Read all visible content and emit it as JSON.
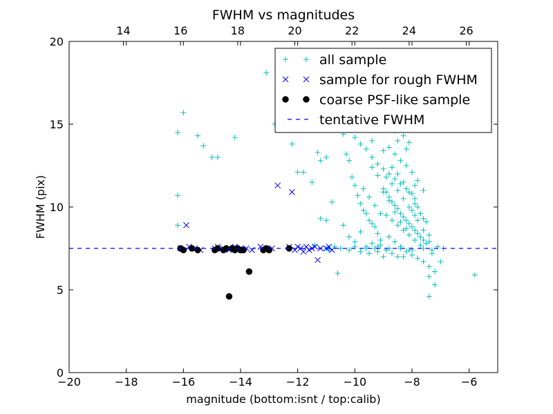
{
  "chart_data": {
    "type": "scatter",
    "title": "FWHM vs magnitudes",
    "xlabel": "magnitude (bottom:isnt / top:calib)",
    "ylabel": "FWHM (pix)",
    "xlim": [
      -20,
      -5
    ],
    "ylim": [
      0,
      20
    ],
    "x_ticks": [
      "−20",
      "−18",
      "−16",
      "−14",
      "−12",
      "−10",
      "−8",
      "−6"
    ],
    "y_ticks": [
      "0",
      "5",
      "10",
      "15",
      "20"
    ],
    "top_x_ticks": [
      "14",
      "16",
      "18",
      "20",
      "22",
      "24",
      "26"
    ],
    "top_axis_offset": 32.1,
    "grid": false,
    "legend_position": "top-right",
    "series": [
      {
        "name": "all sample",
        "marker": "plus",
        "color": "#00bfbf",
        "points": [
          [
            -16.2,
            14.5
          ],
          [
            -16.0,
            15.7
          ],
          [
            -16.2,
            10.7
          ],
          [
            -16.2,
            8.9
          ],
          [
            -15.5,
            14.3
          ],
          [
            -15.3,
            13.7
          ],
          [
            -15.0,
            13.0
          ],
          [
            -14.8,
            13.0
          ],
          [
            -14.2,
            14.2
          ],
          [
            -13.1,
            18.1
          ],
          [
            -12.8,
            15.0
          ],
          [
            -12.2,
            13.8
          ],
          [
            -12.0,
            12.1
          ],
          [
            -11.8,
            12.1
          ],
          [
            -11.5,
            11.5
          ],
          [
            -11.3,
            13.3
          ],
          [
            -11.2,
            12.8
          ],
          [
            -11.0,
            13.0
          ],
          [
            -10.8,
            10.3
          ],
          [
            -10.6,
            6.0
          ],
          [
            -11.2,
            9.3
          ],
          [
            -11.0,
            9.2
          ],
          [
            -10.4,
            8.9
          ],
          [
            -10.2,
            8.2
          ],
          [
            -10.0,
            7.9
          ],
          [
            -9.8,
            8.5
          ],
          [
            -9.6,
            7.6
          ],
          [
            -9.4,
            7.8
          ],
          [
            -9.2,
            7.3
          ],
          [
            -9.0,
            7.0
          ],
          [
            -10.4,
            14.4
          ],
          [
            -10.3,
            13.2
          ],
          [
            -10.2,
            12.8
          ],
          [
            -10.1,
            11.8
          ],
          [
            -10.0,
            11.3
          ],
          [
            -9.9,
            10.7
          ],
          [
            -9.8,
            10.2
          ],
          [
            -9.7,
            9.8
          ],
          [
            -9.6,
            9.6
          ],
          [
            -9.5,
            9.2
          ],
          [
            -9.4,
            9.0
          ],
          [
            -9.3,
            8.8
          ],
          [
            -9.2,
            8.4
          ],
          [
            -9.1,
            8.0
          ],
          [
            -10.0,
            14.2
          ],
          [
            -9.8,
            13.8
          ],
          [
            -9.6,
            13.5
          ],
          [
            -9.4,
            13.0
          ],
          [
            -9.2,
            12.6
          ],
          [
            -9.0,
            12.3
          ],
          [
            -8.8,
            12.0
          ],
          [
            -8.6,
            11.7
          ],
          [
            -8.4,
            11.4
          ],
          [
            -8.2,
            11.1
          ],
          [
            -8.0,
            10.8
          ],
          [
            -7.9,
            10.5
          ],
          [
            -9.0,
            11.1
          ],
          [
            -8.9,
            10.9
          ],
          [
            -8.8,
            10.6
          ],
          [
            -8.7,
            10.3
          ],
          [
            -8.6,
            10.1
          ],
          [
            -8.5,
            9.9
          ],
          [
            -8.4,
            9.6
          ],
          [
            -8.3,
            9.4
          ],
          [
            -8.2,
            9.2
          ],
          [
            -8.1,
            9.0
          ],
          [
            -8.0,
            8.8
          ],
          [
            -7.9,
            8.6
          ],
          [
            -7.8,
            8.4
          ],
          [
            -7.7,
            8.2
          ],
          [
            -7.6,
            8.0
          ],
          [
            -7.5,
            7.8
          ],
          [
            -8.8,
            13.6
          ],
          [
            -8.6,
            13.2
          ],
          [
            -8.4,
            12.8
          ],
          [
            -8.2,
            12.5
          ],
          [
            -8.0,
            12.1
          ],
          [
            -7.8,
            11.6
          ],
          [
            -7.6,
            11.0
          ],
          [
            -8.5,
            14.0
          ],
          [
            -8.3,
            14.3
          ],
          [
            -8.1,
            13.9
          ],
          [
            -8.7,
            12.4
          ],
          [
            -8.5,
            12.0
          ],
          [
            -8.3,
            11.5
          ],
          [
            -8.1,
            10.9
          ],
          [
            -7.9,
            10.2
          ],
          [
            -7.7,
            9.6
          ],
          [
            -7.5,
            9.1
          ],
          [
            -8.9,
            9.5
          ],
          [
            -8.7,
            9.2
          ],
          [
            -8.5,
            8.9
          ],
          [
            -8.3,
            8.6
          ],
          [
            -8.1,
            8.3
          ],
          [
            -7.9,
            8.0
          ],
          [
            -7.7,
            7.7
          ],
          [
            -8.8,
            8.2
          ],
          [
            -8.6,
            7.9
          ],
          [
            -8.4,
            7.6
          ],
          [
            -8.2,
            7.3
          ],
          [
            -8.0,
            7.1
          ],
          [
            -7.8,
            6.9
          ],
          [
            -7.6,
            6.7
          ],
          [
            -7.4,
            6.4
          ],
          [
            -7.2,
            6.1
          ],
          [
            -7.4,
            5.8
          ],
          [
            -7.2,
            5.3
          ],
          [
            -7.4,
            4.6
          ],
          [
            -7.0,
            6.7
          ],
          [
            -7.4,
            8.3
          ],
          [
            -7.6,
            9.3
          ],
          [
            -7.8,
            10.0
          ],
          [
            -7.9,
            11.3
          ],
          [
            -7.6,
            11.0
          ],
          [
            -9.5,
            7.2
          ],
          [
            -9.3,
            7.5
          ],
          [
            -9.1,
            7.7
          ],
          [
            -8.9,
            7.4
          ],
          [
            -8.7,
            7.2
          ],
          [
            -8.5,
            7.0
          ],
          [
            -8.3,
            7.0
          ],
          [
            -8.1,
            7.4
          ],
          [
            -9.7,
            11.1
          ],
          [
            -9.5,
            10.6
          ],
          [
            -9.3,
            10.1
          ],
          [
            -9.1,
            9.6
          ],
          [
            -8.9,
            11.8
          ],
          [
            -8.7,
            11.4
          ],
          [
            -8.5,
            11.0
          ],
          [
            -8.3,
            10.5
          ],
          [
            -8.1,
            10.0
          ],
          [
            -7.9,
            9.5
          ],
          [
            -8.8,
            14.8
          ],
          [
            -8.4,
            15.4
          ],
          [
            -8.6,
            14.6
          ],
          [
            -8.2,
            13.5
          ],
          [
            -9.4,
            14.0
          ],
          [
            -9.0,
            13.4
          ],
          [
            -5.8,
            5.9
          ],
          [
            -10.7,
            7.6
          ],
          [
            -11.0,
            7.5
          ],
          [
            -11.4,
            7.7
          ],
          [
            -10.9,
            7.4
          ],
          [
            -10.5,
            7.5
          ],
          [
            -10.2,
            7.4
          ],
          [
            -10.0,
            7.6
          ],
          [
            -9.8,
            7.3
          ],
          [
            -9.6,
            7.5
          ],
          [
            -9.2,
            7.6
          ],
          [
            -8.8,
            7.5
          ],
          [
            -8.4,
            7.5
          ],
          [
            -8.0,
            7.4
          ],
          [
            -7.6,
            7.5
          ],
          [
            -7.3,
            7.4
          ],
          [
            -7.1,
            7.6
          ],
          [
            -6.9,
            7.5
          ],
          [
            -9.4,
            12.4
          ],
          [
            -9.2,
            11.9
          ],
          [
            -9.0,
            10.9
          ],
          [
            -8.8,
            10.4
          ],
          [
            -8.6,
            9.7
          ],
          [
            -8.4,
            9.1
          ],
          [
            -8.2,
            8.7
          ],
          [
            -8.0,
            9.8
          ],
          [
            -7.8,
            9.2
          ],
          [
            -7.6,
            8.6
          ],
          [
            -7.4,
            7.9
          ],
          [
            -7.3,
            7.2
          ]
        ]
      },
      {
        "name": "sample for rough FWHM",
        "marker": "x",
        "color": "#0000ff",
        "points": [
          [
            -16.1,
            7.5
          ],
          [
            -15.9,
            8.9
          ],
          [
            -15.8,
            7.6
          ],
          [
            -15.6,
            7.5
          ],
          [
            -15.4,
            7.4
          ],
          [
            -14.9,
            7.5
          ],
          [
            -14.8,
            7.6
          ],
          [
            -14.6,
            7.5
          ],
          [
            -14.4,
            7.4
          ],
          [
            -14.2,
            7.6
          ],
          [
            -14.0,
            7.5
          ],
          [
            -13.8,
            7.5
          ],
          [
            -13.6,
            7.4
          ],
          [
            -13.3,
            7.6
          ],
          [
            -13.1,
            7.5
          ],
          [
            -12.9,
            7.5
          ],
          [
            -12.7,
            11.3
          ],
          [
            -12.2,
            10.9
          ],
          [
            -12.3,
            7.6
          ],
          [
            -12.1,
            7.4
          ],
          [
            -12.0,
            7.6
          ],
          [
            -11.9,
            7.5
          ],
          [
            -11.8,
            7.3
          ],
          [
            -11.7,
            7.6
          ],
          [
            -11.6,
            7.4
          ],
          [
            -11.5,
            7.5
          ],
          [
            -11.4,
            7.6
          ],
          [
            -11.3,
            6.8
          ],
          [
            -11.2,
            7.5
          ],
          [
            -11.0,
            7.5
          ],
          [
            -10.9,
            7.6
          ],
          [
            -10.8,
            7.4
          ]
        ]
      },
      {
        "name": "coarse PSF-like sample",
        "marker": "dot",
        "color": "#000000",
        "points": [
          [
            -16.1,
            7.5
          ],
          [
            -16.0,
            7.4
          ],
          [
            -15.7,
            7.5
          ],
          [
            -15.5,
            7.4
          ],
          [
            -14.9,
            7.4
          ],
          [
            -14.8,
            7.5
          ],
          [
            -14.6,
            7.4
          ],
          [
            -14.5,
            7.5
          ],
          [
            -14.4,
            4.6
          ],
          [
            -14.3,
            7.5
          ],
          [
            -14.2,
            7.4
          ],
          [
            -14.1,
            7.5
          ],
          [
            -14.0,
            7.4
          ],
          [
            -13.9,
            7.4
          ],
          [
            -13.7,
            6.1
          ],
          [
            -13.2,
            7.4
          ],
          [
            -13.1,
            7.5
          ],
          [
            -13.0,
            7.4
          ],
          [
            -12.3,
            7.5
          ]
        ]
      },
      {
        "name": "tentative FWHM",
        "marker": "dashed-line",
        "color": "#0000ff",
        "y": 7.5
      }
    ]
  }
}
